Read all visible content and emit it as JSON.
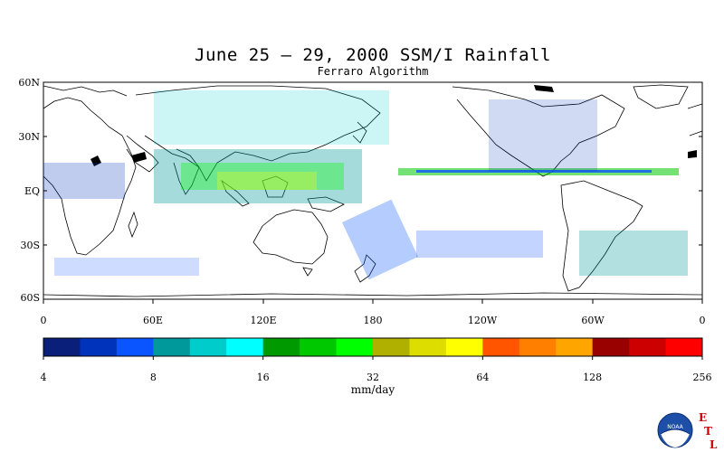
{
  "title": "June 25 – 29, 2000 SSM/I Rainfall",
  "subtitle": "Ferraro Algorithm",
  "lat_labels": [
    "60N",
    "30N",
    "EQ",
    "30S",
    "60S"
  ],
  "lon_labels": [
    "0",
    "60E",
    "120E",
    "180",
    "120W",
    "60W",
    "0"
  ],
  "colorbar": {
    "colors": [
      "#0a1f7a",
      "#0033bb",
      "#0a55ff",
      "#00999b",
      "#00cccc",
      "#00ffff",
      "#009900",
      "#00c800",
      "#00ff00",
      "#b0b000",
      "#dddd00",
      "#ffff00",
      "#ff5500",
      "#ff7f00",
      "#ffa500",
      "#990000",
      "#cc0000",
      "#ff0000"
    ],
    "tick_labels": [
      "4",
      "8",
      "16",
      "32",
      "64",
      "128",
      "256"
    ],
    "unit": "mm/day"
  },
  "logo": {
    "letters": [
      "E",
      "T",
      "L"
    ],
    "badge_text": "NOAA",
    "icon": "noaa-logo-icon"
  }
}
